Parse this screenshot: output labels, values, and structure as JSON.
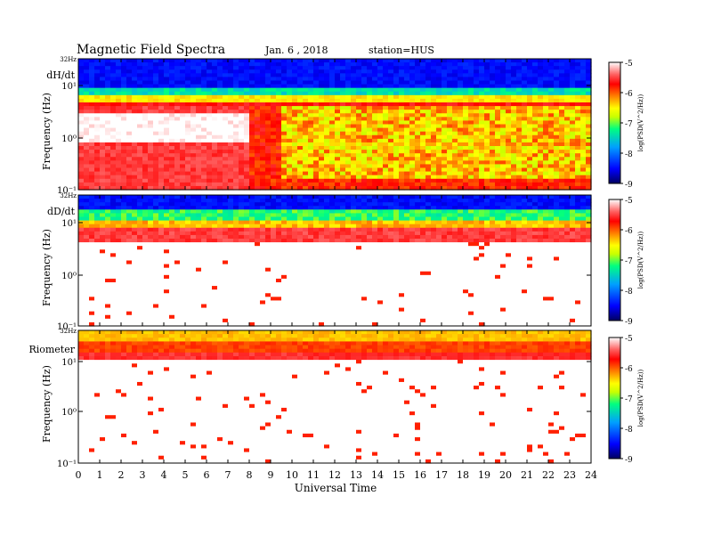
{
  "header": {
    "title": "Magnetic  Field  Spectra",
    "date": "Jan. 6  , 2018",
    "station": "station=HUS"
  },
  "colorbar": {
    "label": "log(PSD(V^2/Hz))",
    "ticks": [
      "-5",
      "-6",
      "-7",
      "-8",
      "-9"
    ],
    "colors": [
      "#000060",
      "#0000ff",
      "#00a0ff",
      "#00ff80",
      "#c8ff00",
      "#ffff00",
      "#ff8000",
      "#ff0000",
      "#ff6060",
      "#ffffff"
    ]
  },
  "chart_data": [
    {
      "type": "heatmap",
      "panel_label": "dH/dt",
      "ylabel": "Frequency (Hz)",
      "top_label": "32Hz",
      "yscale": "log",
      "yticks": [
        "10¹",
        "10⁰",
        "10⁻¹"
      ],
      "xlim": [
        0,
        24
      ],
      "zlim": [
        -9,
        -5
      ],
      "description_levels": {
        "background_low_freq": -6.5,
        "band_10Hz": -5.5,
        "above_20Hz": -8.5
      }
    },
    {
      "type": "heatmap",
      "panel_label": "dD/dt",
      "ylabel": "Frequency (Hz)",
      "top_label": "32Hz",
      "yscale": "log",
      "yticks": [
        "10¹",
        "10⁰",
        "10⁻¹"
      ],
      "xlim": [
        0,
        24
      ],
      "zlim": [
        -9,
        -5
      ]
    },
    {
      "type": "heatmap",
      "panel_label": "Riometer",
      "ylabel": "Frequency (Hz)",
      "top_label": "32Hz",
      "yscale": "log",
      "yticks": [
        "10¹",
        "10⁰",
        "10⁻¹"
      ],
      "xlim": [
        0,
        24
      ],
      "zlim": [
        -9,
        -5
      ]
    }
  ],
  "xaxis": {
    "label": "Universal Time",
    "ticks": [
      "0",
      "1",
      "2",
      "3",
      "4",
      "5",
      "6",
      "7",
      "8",
      "9",
      "10",
      "11",
      "12",
      "13",
      "14",
      "15",
      "16",
      "17",
      "18",
      "19",
      "20",
      "21",
      "22",
      "23",
      "24"
    ]
  }
}
